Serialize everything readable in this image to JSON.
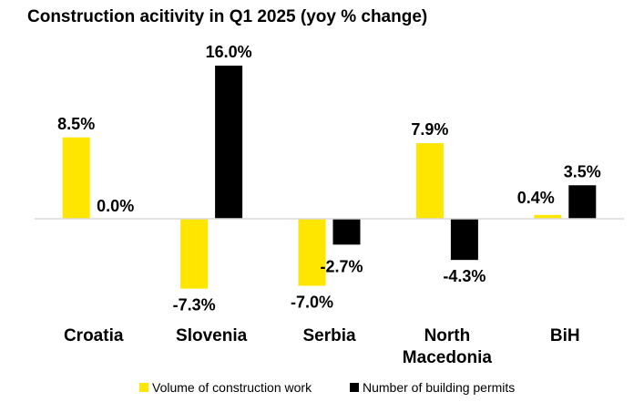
{
  "chart_data": {
    "type": "bar",
    "title": "Construction acitivity in Q1 2025 (yoy % change)",
    "categories": [
      "Croatia",
      "Slovenia",
      "Serbia",
      "North Macedonia",
      "BiH"
    ],
    "category_lines": [
      [
        "Croatia"
      ],
      [
        "Slovenia"
      ],
      [
        "Serbia"
      ],
      [
        "North",
        "Macedonia"
      ],
      [
        "BiH"
      ]
    ],
    "series": [
      {
        "name": "Volume of construction work",
        "color": "#FFE600",
        "values": [
          8.5,
          -7.3,
          -7.0,
          7.9,
          0.4
        ],
        "labels": [
          "8.5%",
          "-7.3%",
          "-7.0%",
          "7.9%",
          "0.4%"
        ]
      },
      {
        "name": "Number of building permits",
        "color": "#000000",
        "values": [
          0.0,
          16.0,
          -2.7,
          -4.3,
          3.5
        ],
        "labels": [
          "0.0%",
          "16.0%",
          "-2.7%",
          "-4.3%",
          "3.5%"
        ]
      }
    ],
    "ylim": [
      -8.0,
      16.0
    ],
    "grid": false,
    "legend_position": "bottom",
    "axis_line_color": "#D9D9D9"
  }
}
